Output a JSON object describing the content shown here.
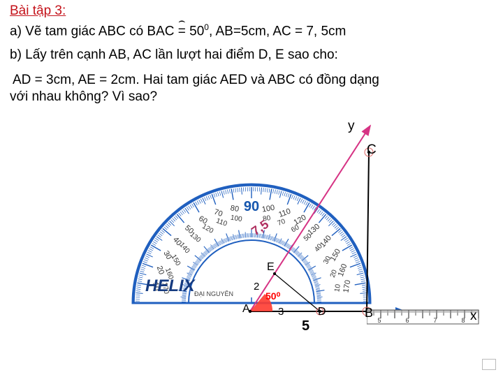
{
  "title": "Bài tập 3:",
  "line_a_prefix": "a) Vẽ tam giác ABC có  BAC = 50",
  "line_a_suffix": ", AB=5cm, AC = 7, 5cm",
  "sup0": "0",
  "hat": "⌢",
  "line_b": "b) Lấy trên cạnh AB, AC lần lượt hai điểm D, E sao cho:",
  "line_c1": "AD = 3cm, AE = 2cm. Hai tam giác AED và ABC có đồng dạng",
  "line_c2": "với nhau không? Vì sao?",
  "labels": {
    "y": "y",
    "C": "C",
    "x": "x",
    "len75": "7,5",
    "E": "E",
    "two": "2",
    "ang50": "50⁰",
    "A": "A",
    "three": "3",
    "D": "D",
    "B": "B",
    "five": "5",
    "helix": "HELIX",
    "dainguyen": "ĐẠI NGUYÊN"
  },
  "protractor": {
    "outer_r": 170,
    "inner_r": 90,
    "stroke": "#1f5fbf",
    "fill": "none",
    "tick_color": "#1f5fbf",
    "label_color": "#333333",
    "big_labels": [
      10,
      20,
      30,
      40,
      50,
      60,
      70,
      80,
      100,
      110,
      120,
      130,
      140,
      150,
      160,
      170
    ],
    "center_label": "90",
    "center_label_color": "#1656ae"
  },
  "geometry": {
    "ray_color_pink": "#d63384",
    "ray_color_blue": "#1f5fbf",
    "triangle_stroke": "#000000",
    "angle_fill": "#ff3b30"
  },
  "ruler": {
    "stroke": "#555",
    "tick_color": "#444"
  }
}
